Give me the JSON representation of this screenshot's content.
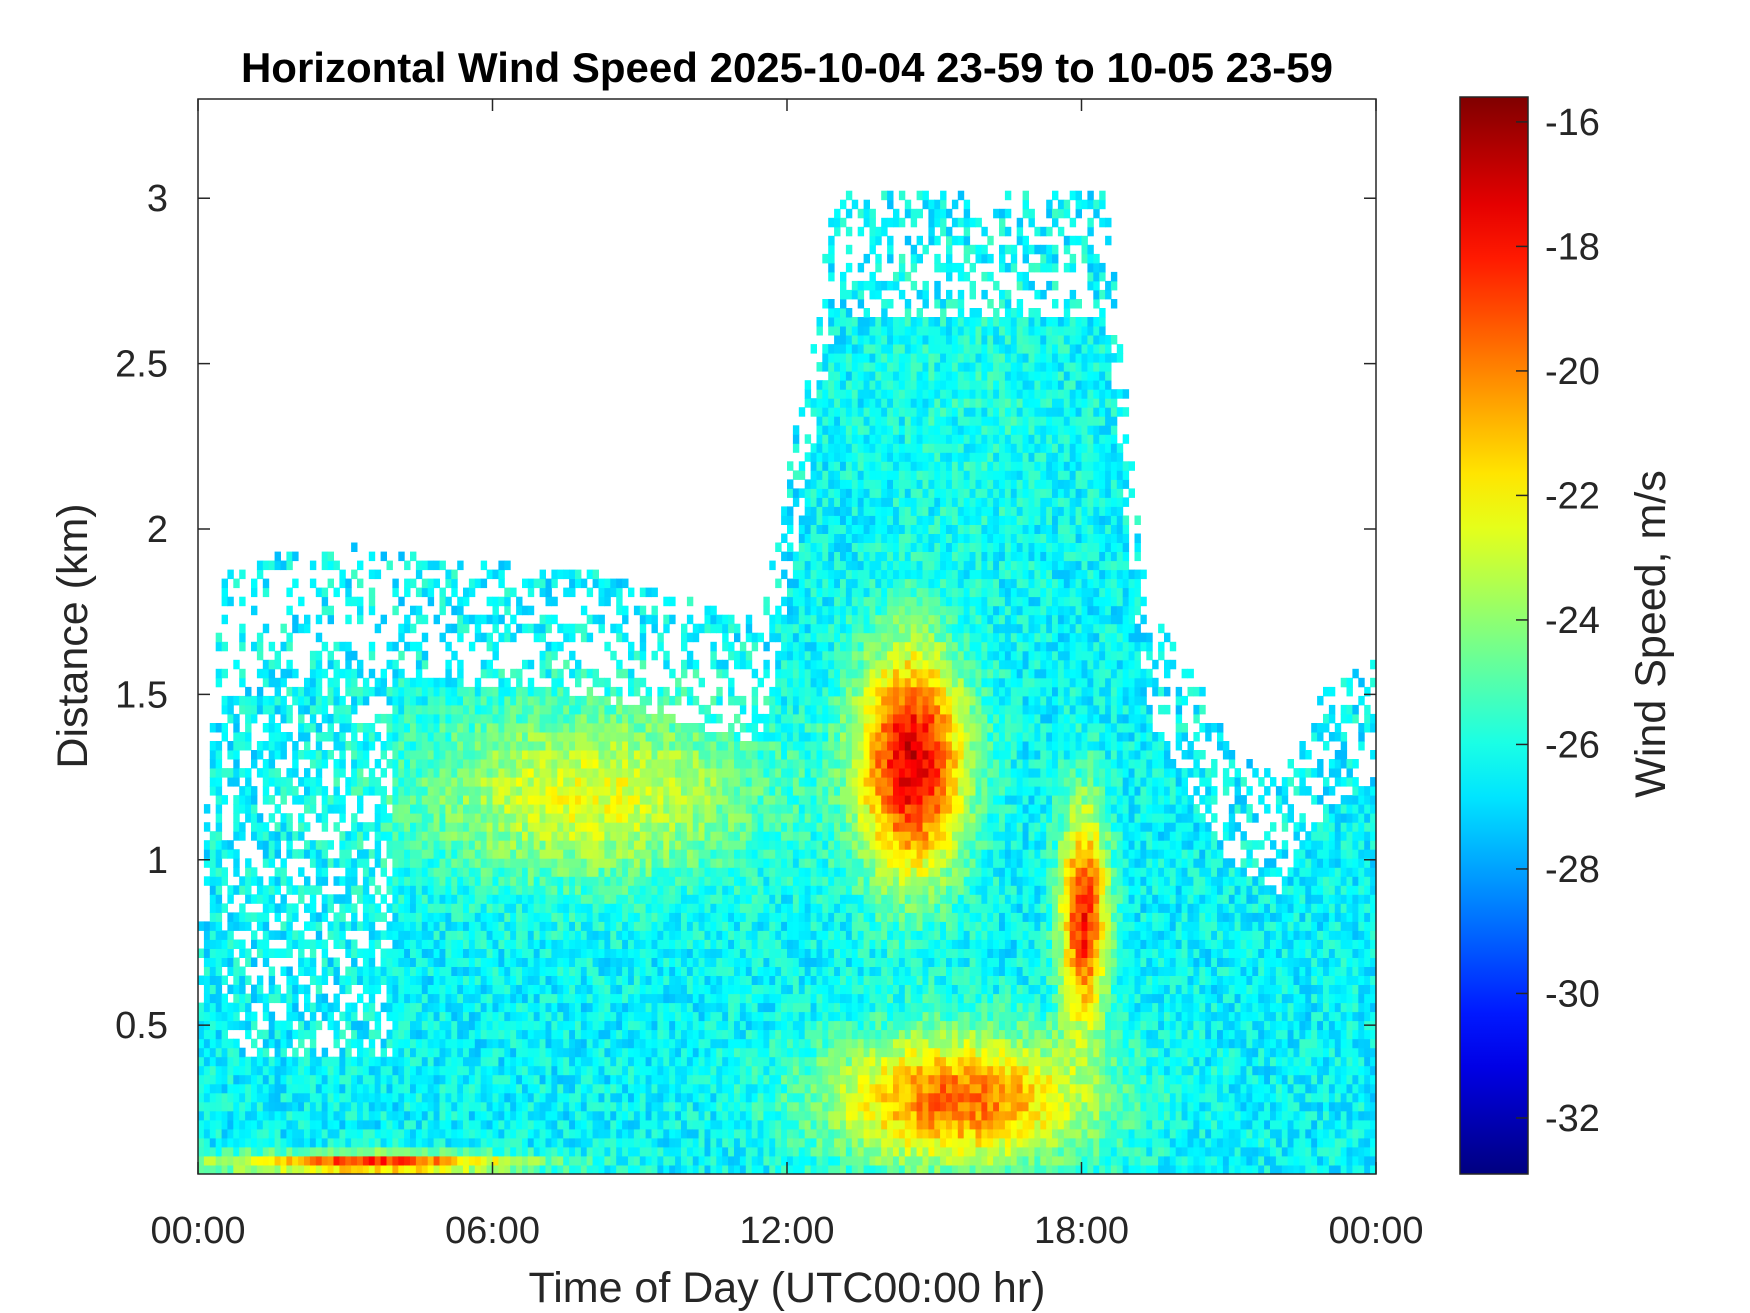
{
  "chart_data": {
    "type": "heatmap",
    "title": "Horizontal Wind Speed 2025-10-04 23-59 to 10-05 23-59",
    "xlabel": "Time of Day (UTC00:00 hr)",
    "ylabel": "Distance (km)",
    "x_unit": "hours",
    "xlim": [
      0,
      24
    ],
    "ylim": [
      0.05,
      3.3
    ],
    "x_ticks": [
      {
        "value": 0,
        "label": "00:00"
      },
      {
        "value": 6,
        "label": "06:00"
      },
      {
        "value": 12,
        "label": "12:00"
      },
      {
        "value": 18,
        "label": "18:00"
      },
      {
        "value": 24,
        "label": "00:00"
      }
    ],
    "y_ticks": [
      {
        "value": 0.5,
        "label": "0.5"
      },
      {
        "value": 1,
        "label": "1"
      },
      {
        "value": 1.5,
        "label": "1.5"
      },
      {
        "value": 2,
        "label": "2"
      },
      {
        "value": 2.5,
        "label": "2.5"
      },
      {
        "value": 3,
        "label": "3"
      }
    ],
    "colorbar": {
      "label": "Wind Speed, m/s",
      "colormap": "jet",
      "clim": [
        -32.9,
        -15.6
      ],
      "ticks": [
        {
          "value": -16,
          "label": "-16"
        },
        {
          "value": -18,
          "label": "-18"
        },
        {
          "value": -20,
          "label": "-20"
        },
        {
          "value": -22,
          "label": "-22"
        },
        {
          "value": -24,
          "label": "-24"
        },
        {
          "value": -26,
          "label": "-26"
        },
        {
          "value": -28,
          "label": "-28"
        },
        {
          "value": -30,
          "label": "-30"
        },
        {
          "value": -32,
          "label": "-32"
        }
      ]
    },
    "grid": false,
    "data_coverage_top_km": [
      {
        "x": 0.0,
        "top": 0.65
      },
      {
        "x": 0.5,
        "top": 1.75
      },
      {
        "x": 2.5,
        "top": 1.85
      },
      {
        "x": 4.5,
        "top": 1.8
      },
      {
        "x": 8.0,
        "top": 1.75
      },
      {
        "x": 11.5,
        "top": 1.6
      },
      {
        "x": 13.0,
        "top": 2.9
      },
      {
        "x": 18.5,
        "top": 2.9
      },
      {
        "x": 19.3,
        "top": 1.7
      },
      {
        "x": 21.0,
        "top": 1.25
      },
      {
        "x": 22.0,
        "top": 1.15
      },
      {
        "x": 23.0,
        "top": 1.4
      },
      {
        "x": 24.0,
        "top": 1.5
      }
    ],
    "speed_features": [
      {
        "name": "surface layer",
        "x_range": [
          0,
          7
        ],
        "y_range": [
          0.05,
          0.12
        ],
        "value": -18.5
      },
      {
        "name": "boundary layer band",
        "x_range": [
          4,
          12
        ],
        "y_range": [
          0.9,
          1.5
        ],
        "value": -22.5
      },
      {
        "name": "upper jet core",
        "x_range": [
          13.3,
          15.8
        ],
        "y_range": [
          0.9,
          1.7
        ],
        "value": -17.0
      },
      {
        "name": "lower jet core",
        "x_range": [
          17.5,
          18.6
        ],
        "y_range": [
          0.45,
          1.2
        ],
        "value": -18.0
      },
      {
        "name": "afternoon low-level max",
        "x_range": [
          12.5,
          18.5
        ],
        "y_range": [
          0.05,
          0.5
        ],
        "value": -19.5
      },
      {
        "name": "upper aloft",
        "x_range": [
          13,
          18.5
        ],
        "y_range": [
          1.8,
          2.9
        ],
        "value": -26.0
      }
    ]
  }
}
